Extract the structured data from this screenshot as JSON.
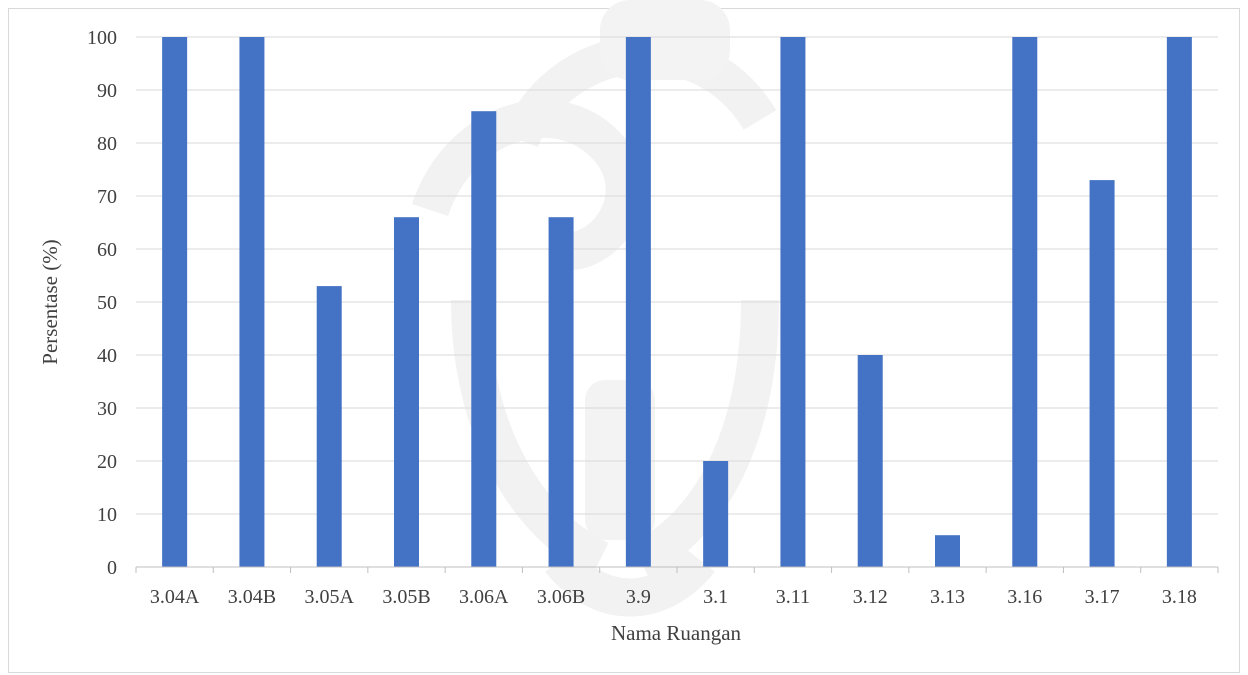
{
  "chart_data": {
    "type": "bar",
    "title": "",
    "xlabel": "Nama Ruangan",
    "ylabel": "Persentase (%)",
    "categories": [
      "3.04A",
      "3.04B",
      "3.05A",
      "3.05B",
      "3.06A",
      "3.06B",
      "3.9",
      "3.1",
      "3.11",
      "3.12",
      "3.13",
      "3.16",
      "3.17",
      "3.18"
    ],
    "values": [
      100,
      100,
      53,
      66,
      86,
      66,
      100,
      20,
      100,
      40,
      6,
      100,
      73,
      100
    ],
    "ylim": [
      0,
      100
    ],
    "yticks": [
      "0",
      "10",
      "20",
      "30",
      "40",
      "50",
      "60",
      "70",
      "80",
      "90",
      "100"
    ],
    "grid": true,
    "legend": "none",
    "colors": {
      "bar": "#4472c4",
      "grid": "#d9d9d9",
      "axis": "#bfbfbf",
      "text": "#404040",
      "watermark": "#f0f0f0"
    }
  }
}
